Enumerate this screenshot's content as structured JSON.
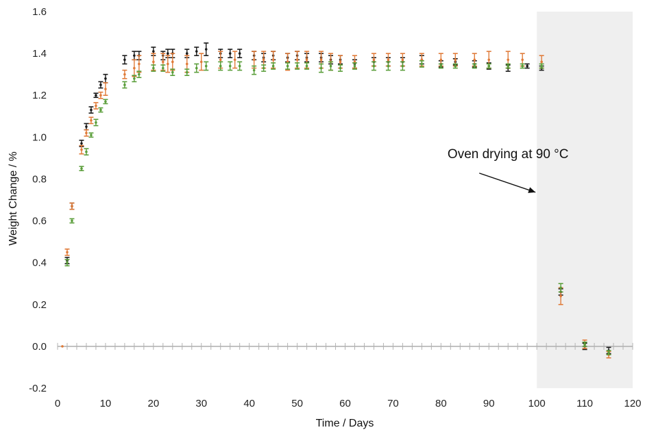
{
  "chart_data": {
    "type": "scatter",
    "xlabel": "Time / Days",
    "ylabel": "Weight Change / %",
    "xlim": [
      0,
      120
    ],
    "ylim": [
      -0.2,
      1.6
    ],
    "xticks": [
      "0",
      "10",
      "20",
      "30",
      "40",
      "50",
      "60",
      "70",
      "80",
      "90",
      "100",
      "110",
      "120"
    ],
    "yticks": [
      "-0.2",
      "0.0",
      "0.2",
      "0.4",
      "0.6",
      "0.8",
      "1.0",
      "1.2",
      "1.4",
      "1.6"
    ],
    "grid": false,
    "error_bars": true,
    "shaded_region": {
      "x_start": 100,
      "x_end": 120,
      "color": "#efefef"
    },
    "annotation": {
      "text": "Oven drying at 90 °C",
      "x": 94,
      "y": 0.9,
      "arrow_to": [
        100,
        0.73
      ]
    },
    "zero_line_color": "#b3b3b3",
    "series": [
      {
        "color": "#1a1a1a",
        "x": [
          2,
          3,
          5,
          6,
          7,
          8,
          9,
          10,
          14,
          16,
          17,
          20,
          22,
          23,
          24,
          27,
          29,
          31,
          34,
          36,
          38,
          41,
          43,
          45,
          48,
          50,
          52,
          55,
          57,
          59,
          62,
          66,
          69,
          72,
          76,
          80,
          83,
          87,
          90,
          94,
          98,
          101,
          105,
          110,
          115
        ],
        "y": [
          0.41,
          0.67,
          0.97,
          1.05,
          1.13,
          1.2,
          1.25,
          1.28,
          1.37,
          1.39,
          1.39,
          1.41,
          1.39,
          1.4,
          1.4,
          1.4,
          1.41,
          1.42,
          1.4,
          1.4,
          1.4,
          1.39,
          1.38,
          1.39,
          1.38,
          1.39,
          1.38,
          1.38,
          1.37,
          1.37,
          1.35,
          1.36,
          1.36,
          1.36,
          1.37,
          1.35,
          1.36,
          1.35,
          1.34,
          1.33,
          1.34,
          1.33,
          0.26,
          0.0,
          -0.02
        ],
        "err": [
          0.015,
          0.015,
          0.015,
          0.015,
          0.015,
          0.01,
          0.015,
          0.02,
          0.02,
          0.02,
          0.02,
          0.02,
          0.02,
          0.02,
          0.02,
          0.02,
          0.02,
          0.03,
          0.02,
          0.02,
          0.02,
          0.02,
          0.02,
          0.02,
          0.02,
          0.02,
          0.02,
          0.02,
          0.02,
          0.02,
          0.02,
          0.02,
          0.02,
          0.02,
          0.02,
          0.015,
          0.015,
          0.015,
          0.015,
          0.015,
          0.01,
          0.01,
          0.015,
          0.015,
          0.015
        ]
      },
      {
        "color": "#e07b39",
        "x": [
          1,
          2,
          3,
          5,
          6,
          7,
          8,
          9,
          10,
          14,
          16,
          17,
          20,
          22,
          23,
          24,
          27,
          30,
          34,
          37,
          41,
          43,
          45,
          48,
          50,
          52,
          55,
          57,
          59,
          62,
          66,
          69,
          72,
          76,
          80,
          83,
          87,
          90,
          94,
          97,
          101,
          105,
          110,
          115
        ],
        "y": [
          0.0,
          0.45,
          0.67,
          0.94,
          1.02,
          1.08,
          1.15,
          1.2,
          1.23,
          1.3,
          1.33,
          1.35,
          1.36,
          1.36,
          1.35,
          1.36,
          1.35,
          1.36,
          1.37,
          1.37,
          1.37,
          1.37,
          1.37,
          1.36,
          1.37,
          1.37,
          1.37,
          1.36,
          1.36,
          1.36,
          1.37,
          1.37,
          1.37,
          1.37,
          1.37,
          1.37,
          1.37,
          1.37,
          1.37,
          1.37,
          1.36,
          0.24,
          0.01,
          -0.04
        ],
        "err": [
          0.0,
          0.015,
          0.015,
          0.02,
          0.015,
          0.015,
          0.015,
          0.015,
          0.03,
          0.02,
          0.04,
          0.04,
          0.04,
          0.04,
          0.04,
          0.04,
          0.04,
          0.04,
          0.04,
          0.04,
          0.04,
          0.04,
          0.04,
          0.04,
          0.04,
          0.04,
          0.04,
          0.04,
          0.03,
          0.03,
          0.03,
          0.03,
          0.03,
          0.03,
          0.03,
          0.03,
          0.03,
          0.04,
          0.04,
          0.03,
          0.03,
          0.04,
          0.02,
          0.015
        ]
      },
      {
        "color": "#5a9e3a",
        "x": [
          2,
          3,
          5,
          6,
          7,
          8,
          9,
          10,
          14,
          16,
          17,
          20,
          22,
          24,
          27,
          29,
          31,
          34,
          36,
          38,
          41,
          43,
          45,
          48,
          50,
          52,
          55,
          57,
          59,
          62,
          66,
          69,
          72,
          76,
          80,
          83,
          87,
          90,
          94,
          97,
          101,
          105,
          110,
          115
        ],
        "y": [
          0.4,
          0.6,
          0.85,
          0.93,
          1.01,
          1.07,
          1.13,
          1.17,
          1.25,
          1.28,
          1.3,
          1.33,
          1.33,
          1.31,
          1.31,
          1.33,
          1.34,
          1.34,
          1.34,
          1.34,
          1.32,
          1.33,
          1.34,
          1.34,
          1.34,
          1.34,
          1.33,
          1.34,
          1.33,
          1.34,
          1.34,
          1.34,
          1.34,
          1.35,
          1.34,
          1.34,
          1.34,
          1.34,
          1.34,
          1.34,
          1.34,
          0.28,
          0.01,
          -0.03
        ],
        "err": [
          0.015,
          0.01,
          0.01,
          0.015,
          0.01,
          0.015,
          0.01,
          0.01,
          0.015,
          0.015,
          0.015,
          0.015,
          0.015,
          0.015,
          0.015,
          0.02,
          0.02,
          0.02,
          0.02,
          0.02,
          0.02,
          0.015,
          0.015,
          0.015,
          0.015,
          0.015,
          0.02,
          0.02,
          0.015,
          0.015,
          0.02,
          0.02,
          0.02,
          0.015,
          0.01,
          0.01,
          0.01,
          0.01,
          0.01,
          0.01,
          0.01,
          0.02,
          0.01,
          0.01
        ]
      }
    ]
  }
}
